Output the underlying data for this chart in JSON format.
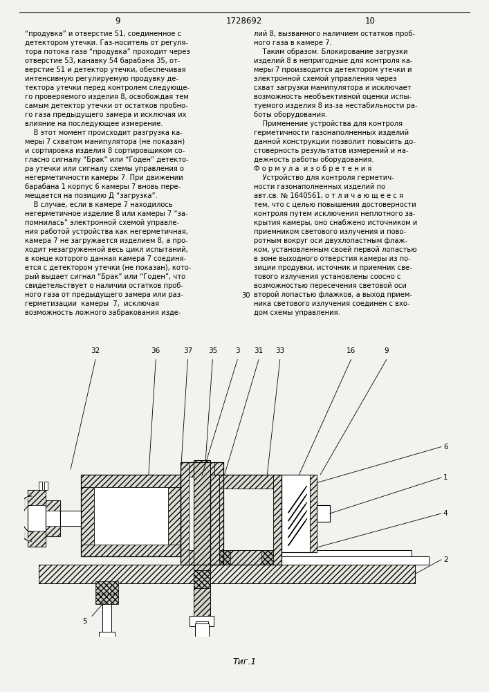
{
  "page_numbers": [
    "9",
    "1728692",
    "10"
  ],
  "background_color": "#f2f2ee",
  "left_column_text": [
    "“продувка” и отверстие 51, соединенное с",
    "детектором утечки. Газ-носитель от регуля-",
    "тора потока газа “продувка” проходит через",
    "отверстие 53, канавку 54 барабана 35, от-",
    "верстие 51 и детектор утечки, обеспечивая",
    "интенсивную регулируемую продувку де-",
    "тектора утечки перед контролем следующе-",
    "го проверяемого изделия 8, освобождая тем",
    "самым детектор утечки от остатков пробно-",
    "го газа предыдущего замера и исключая их",
    "влияние на последующее измерение.",
    "    В этот момент происходит разгрузка ка-",
    "меры 7 схватом манипулятора (не показан)",
    "и сортировка изделия 8 сортировщиком со-",
    "гласно сигналу “Брак” или “Годен” детекто-",
    "ра утечки или сигналу схемы управления о",
    "негерметичности камеры 7. При движении",
    "барабана 1 корпус 6 камеры 7 вновь пере-",
    "мещается на позицию Д “загрузка”.",
    "    В случае, если в камере 7 находилось",
    "негерметичное изделие 8 или камеры 7 “за-",
    "помнилась” электронной схемой управле-",
    "ния работой устройства как негерметичная,",
    "камера 7 не загружается изделием 8, а про-",
    "ходит незагруженной весь цикл испытаний,",
    "в конце которого данная камера 7 соединя-",
    "ется с детектором утечки (не показан), кото-",
    "рый выдает сигнал “Брак” или “Годен”, что",
    "свидетельствует о наличии остатков проб-",
    "ного газа от предыдущего замера или раз-",
    "герметизации  камеры  7,  исключая",
    "возможность ложного забракования изде-"
  ],
  "right_column_text": [
    "лий 8, вызванного наличием остатков проб-",
    "ного газа в камере 7.",
    "    Таким образом. Блокирование загрузки",
    "изделий 8 в непригодные для контроля ка-",
    "меры 7 производится детектором утечки и",
    "электронной схемой управления через",
    "схват загрузки манипулятора и исключает",
    "возможность необъективной оценки испы-",
    "туемого изделия 8 из-за нестабильности ра-",
    "боты оборудования.",
    "    Применение устройства для контроля",
    "герметичности газонаполненных изделий",
    "данной конструкции позволит повысить до-",
    "стоверность результатов измерений и на-",
    "дежность работы оборудования.",
    "Ф о р м у л а  и з о б р е т е н и я",
    "    Устройство для контроля герметич-",
    "ности газонаполненных изделий по",
    "авт.св. № 1640561, о т л и ч а ю щ е е с я",
    "тем, что с целью повышения достоверности",
    "контроля путем исключения неплотного за-",
    "крытия камеры, оно снабжено источником и",
    "приемником светового излучения и пово-",
    "ротным вокруг оси двухлопастным флаж-",
    "ком, установленным своей первой лопастью",
    "в зоне выходного отверстия камеры из по-",
    "зиции продувки, источник и приемник све-",
    "тового излучения установлены соосно с",
    "возможностью пересечения световой оси",
    "второй лопастью флажков, а выход прием-",
    "ника светового излучения соединен с вхо-",
    "дом схемы управления."
  ],
  "line_number_30_row": 29,
  "fig_caption": "Τиг.1"
}
